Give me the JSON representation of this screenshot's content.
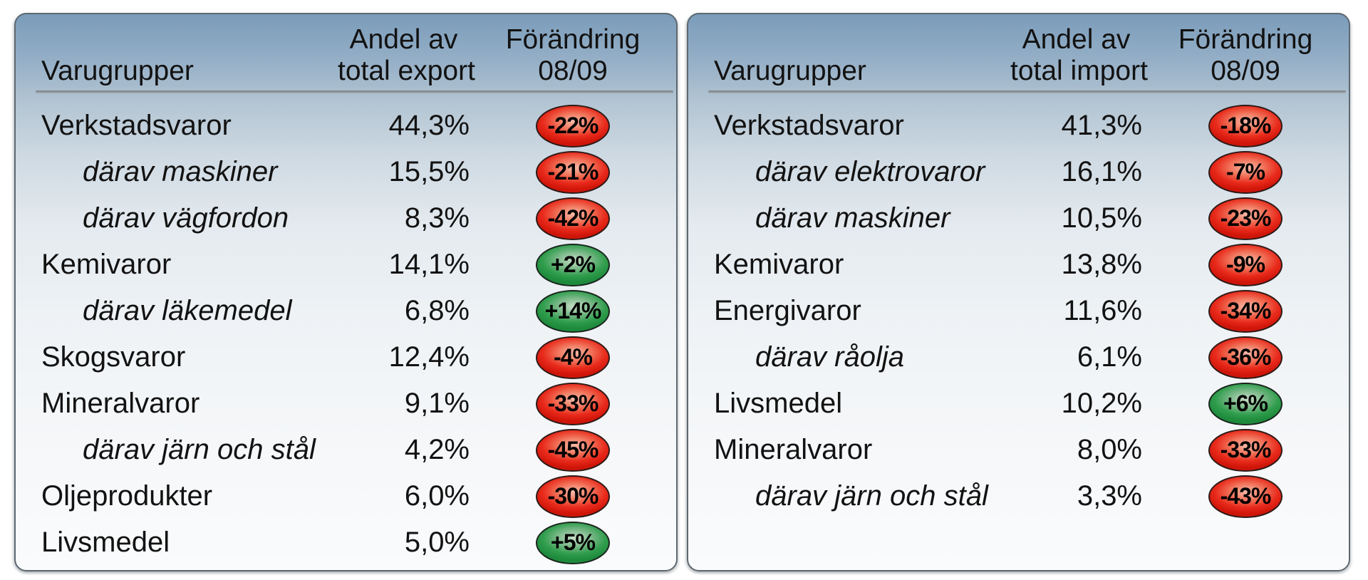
{
  "panels": [
    {
      "name": "export",
      "headers": {
        "group": "Varugrupper",
        "share_line1": "Andel av",
        "share_line2": "total export",
        "change_line1": "Förändring",
        "change_line2": "08/09"
      },
      "rows": [
        {
          "label": "Verkstadsvaror",
          "indent": false,
          "share": "44,3%",
          "change": "-22%",
          "direction": "negative"
        },
        {
          "label": "därav maskiner",
          "indent": true,
          "share": "15,5%",
          "change": "-21%",
          "direction": "negative"
        },
        {
          "label": "därav vägfordon",
          "indent": true,
          "share": "8,3%",
          "change": "-42%",
          "direction": "negative"
        },
        {
          "label": "Kemivaror",
          "indent": false,
          "share": "14,1%",
          "change": "+2%",
          "direction": "positive"
        },
        {
          "label": "därav läkemedel",
          "indent": true,
          "share": "6,8%",
          "change": "+14%",
          "direction": "positive"
        },
        {
          "label": "Skogsvaror",
          "indent": false,
          "share": "12,4%",
          "change": "-4%",
          "direction": "negative"
        },
        {
          "label": "Mineralvaror",
          "indent": false,
          "share": "9,1%",
          "change": "-33%",
          "direction": "negative"
        },
        {
          "label": "därav järn och stål",
          "indent": true,
          "share": "4,2%",
          "change": "-45%",
          "direction": "negative"
        },
        {
          "label": "Oljeprodukter",
          "indent": false,
          "share": "6,0%",
          "change": "-30%",
          "direction": "negative"
        },
        {
          "label": "Livsmedel",
          "indent": false,
          "share": "5,0%",
          "change": "+5%",
          "direction": "positive"
        }
      ]
    },
    {
      "name": "import",
      "headers": {
        "group": "Varugrupper",
        "share_line1": "Andel av",
        "share_line2": "total import",
        "change_line1": "Förändring",
        "change_line2": "08/09"
      },
      "rows": [
        {
          "label": "Verkstadsvaror",
          "indent": false,
          "share": "41,3%",
          "change": "-18%",
          "direction": "negative"
        },
        {
          "label": "därav elektrovaror",
          "indent": true,
          "share": "16,1%",
          "change": "-7%",
          "direction": "negative"
        },
        {
          "label": "därav maskiner",
          "indent": true,
          "share": "10,5%",
          "change": "-23%",
          "direction": "negative"
        },
        {
          "label": "Kemivaror",
          "indent": false,
          "share": "13,8%",
          "change": "-9%",
          "direction": "negative"
        },
        {
          "label": "Energivaror",
          "indent": false,
          "share": "11,6%",
          "change": "-34%",
          "direction": "negative"
        },
        {
          "label": "därav råolja",
          "indent": true,
          "share": "6,1%",
          "change": "-36%",
          "direction": "negative"
        },
        {
          "label": "Livsmedel",
          "indent": false,
          "share": "10,2%",
          "change": "+6%",
          "direction": "positive"
        },
        {
          "label": "Mineralvaror",
          "indent": false,
          "share": "8,0%",
          "change": "-33%",
          "direction": "negative"
        },
        {
          "label": "därav järn och stål",
          "indent": true,
          "share": "3,3%",
          "change": "-43%",
          "direction": "negative"
        }
      ]
    }
  ],
  "colors": {
    "negative_badge": "#e8251c",
    "positive_badge": "#2f9d4c",
    "panel_gradient_top": "#7a9cba",
    "panel_border": "#5d6870",
    "header_rule": "#8a9197",
    "text": "#121212"
  },
  "chart_data": [
    {
      "type": "table",
      "title": "",
      "columns": [
        "Varugrupper",
        "Andel av total export",
        "Förändring 08/09"
      ],
      "rows": [
        [
          "Verkstadsvaror",
          "44,3%",
          "-22%"
        ],
        [
          "därav maskiner",
          "15,5%",
          "-21%"
        ],
        [
          "därav vägfordon",
          "8,3%",
          "-42%"
        ],
        [
          "Kemivaror",
          "14,1%",
          "+2%"
        ],
        [
          "därav läkemedel",
          "6,8%",
          "+14%"
        ],
        [
          "Skogsvaror",
          "12,4%",
          "-4%"
        ],
        [
          "Mineralvaror",
          "9,1%",
          "-33%"
        ],
        [
          "därav järn och stål",
          "4,2%",
          "-45%"
        ],
        [
          "Oljeprodukter",
          "6,0%",
          "-30%"
        ],
        [
          "Livsmedel",
          "5,0%",
          "+5%"
        ]
      ]
    },
    {
      "type": "table",
      "title": "",
      "columns": [
        "Varugrupper",
        "Andel av total import",
        "Förändring 08/09"
      ],
      "rows": [
        [
          "Verkstadsvaror",
          "41,3%",
          "-18%"
        ],
        [
          "därav elektrovaror",
          "16,1%",
          "-7%"
        ],
        [
          "därav maskiner",
          "10,5%",
          "-23%"
        ],
        [
          "Kemivaror",
          "13,8%",
          "-9%"
        ],
        [
          "Energivaror",
          "11,6%",
          "-34%"
        ],
        [
          "därav råolja",
          "6,1%",
          "-36%"
        ],
        [
          "Livsmedel",
          "10,2%",
          "+6%"
        ],
        [
          "Mineralvaror",
          "8,0%",
          "-33%"
        ],
        [
          "därav järn och stål",
          "3,3%",
          "-43%"
        ]
      ]
    }
  ]
}
